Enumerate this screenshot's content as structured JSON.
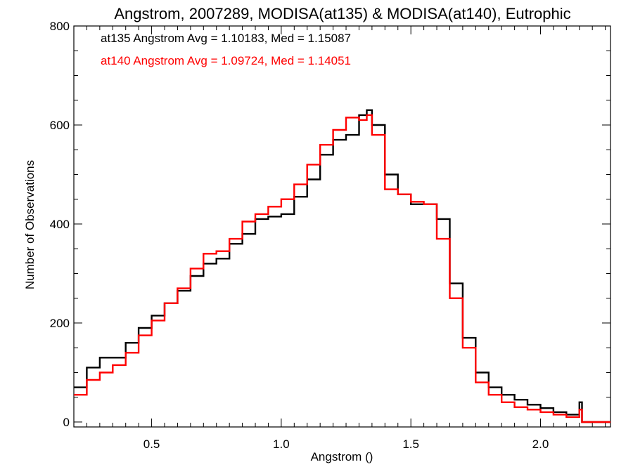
{
  "chart_data": {
    "type": "line",
    "step": true,
    "title": "Angstrom, 2007289, MODISA(at135) & MODISA(at140), Eutrophic",
    "xlabel": "Angstrom ()",
    "ylabel": "Number of Observations",
    "xlim": [
      0.2,
      2.27
    ],
    "ylim": [
      -10,
      800
    ],
    "xticks": [
      0.5,
      1.0,
      1.5,
      2.0
    ],
    "xtick_labels": [
      "0.5",
      "1.0",
      "1.5",
      "2.0"
    ],
    "yticks": [
      0,
      200,
      400,
      600,
      800
    ],
    "ytick_labels": [
      "0",
      "200",
      "400",
      "600",
      "800"
    ],
    "annotations": [
      {
        "text": "at135 Angstrom Avg = 1.10183, Med = 1.15087",
        "color": "#000000"
      },
      {
        "text": "at140 Angstrom Avg = 1.09724, Med = 1.14051",
        "color": "#ff0000"
      }
    ],
    "series": [
      {
        "color": "#000000",
        "x": [
          0.2,
          0.25,
          0.3,
          0.35,
          0.4,
          0.45,
          0.5,
          0.55,
          0.6,
          0.65,
          0.7,
          0.75,
          0.8,
          0.85,
          0.9,
          0.95,
          1.0,
          1.05,
          1.1,
          1.15,
          1.2,
          1.25,
          1.3,
          1.33,
          1.35,
          1.4,
          1.45,
          1.5,
          1.55,
          1.6,
          1.65,
          1.7,
          1.75,
          1.8,
          1.85,
          1.9,
          1.95,
          2.0,
          2.05,
          2.1,
          2.14,
          2.15,
          2.16,
          2.27
        ],
        "y": [
          70,
          110,
          130,
          130,
          160,
          190,
          215,
          240,
          265,
          295,
          320,
          330,
          360,
          380,
          410,
          415,
          420,
          455,
          490,
          540,
          570,
          580,
          620,
          630,
          600,
          500,
          460,
          440,
          440,
          410,
          280,
          170,
          100,
          70,
          55,
          45,
          35,
          28,
          20,
          15,
          15,
          40,
          0,
          0
        ]
      },
      {
        "color": "#ff0000",
        "x": [
          0.2,
          0.25,
          0.3,
          0.35,
          0.4,
          0.45,
          0.5,
          0.55,
          0.6,
          0.65,
          0.7,
          0.75,
          0.8,
          0.85,
          0.9,
          0.95,
          1.0,
          1.05,
          1.1,
          1.15,
          1.2,
          1.25,
          1.3,
          1.33,
          1.35,
          1.4,
          1.45,
          1.5,
          1.55,
          1.6,
          1.65,
          1.7,
          1.75,
          1.8,
          1.85,
          1.9,
          1.95,
          2.0,
          2.05,
          2.1,
          2.14,
          2.15,
          2.16,
          2.27
        ],
        "y": [
          55,
          85,
          100,
          115,
          140,
          175,
          205,
          240,
          270,
          310,
          340,
          345,
          370,
          405,
          420,
          435,
          450,
          480,
          520,
          560,
          590,
          615,
          610,
          620,
          580,
          470,
          460,
          445,
          440,
          370,
          250,
          150,
          80,
          55,
          40,
          30,
          25,
          20,
          15,
          10,
          10,
          25,
          0,
          0
        ]
      }
    ]
  }
}
